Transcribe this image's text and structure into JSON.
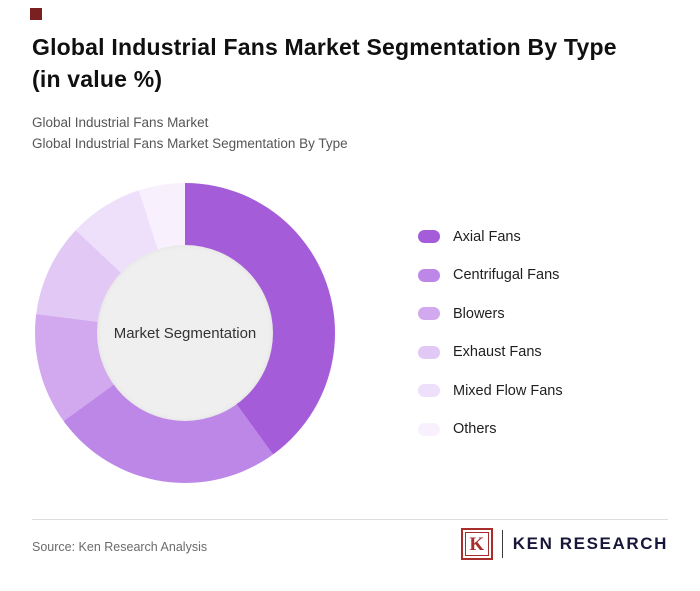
{
  "page": {
    "title_line1": "Global Industrial Fans Market Segmentation By Type",
    "title_line2": "(in value %)",
    "subtitle1": "Global Industrial Fans Market",
    "subtitle2": "Global Industrial Fans Market Segmentation By Type",
    "source": "Source: Ken Research Analysis",
    "logo_letter": "K",
    "logo_text": "KEN RESEARCH",
    "accent_color": "#7a2020"
  },
  "chart_data": {
    "type": "pie",
    "donut": true,
    "title": "Global Industrial Fans Market Segmentation By Type (in value %)",
    "center_label": "Market Segmentation",
    "categories": [
      "Axial Fans",
      "Centrifugal Fans",
      "Blowers",
      "Exhaust Fans",
      "Mixed Flow Fans",
      "Others"
    ],
    "values": [
      40,
      25,
      12,
      10,
      8,
      5
    ],
    "colors": [
      "#a55cd9",
      "#bd87e8",
      "#d2a9ef",
      "#e2c8f5",
      "#eedffa",
      "#f8f1fd"
    ],
    "start_angle_deg": 0,
    "legend_position": "right",
    "hole_color": "#efefef",
    "values_unit": "value %"
  }
}
